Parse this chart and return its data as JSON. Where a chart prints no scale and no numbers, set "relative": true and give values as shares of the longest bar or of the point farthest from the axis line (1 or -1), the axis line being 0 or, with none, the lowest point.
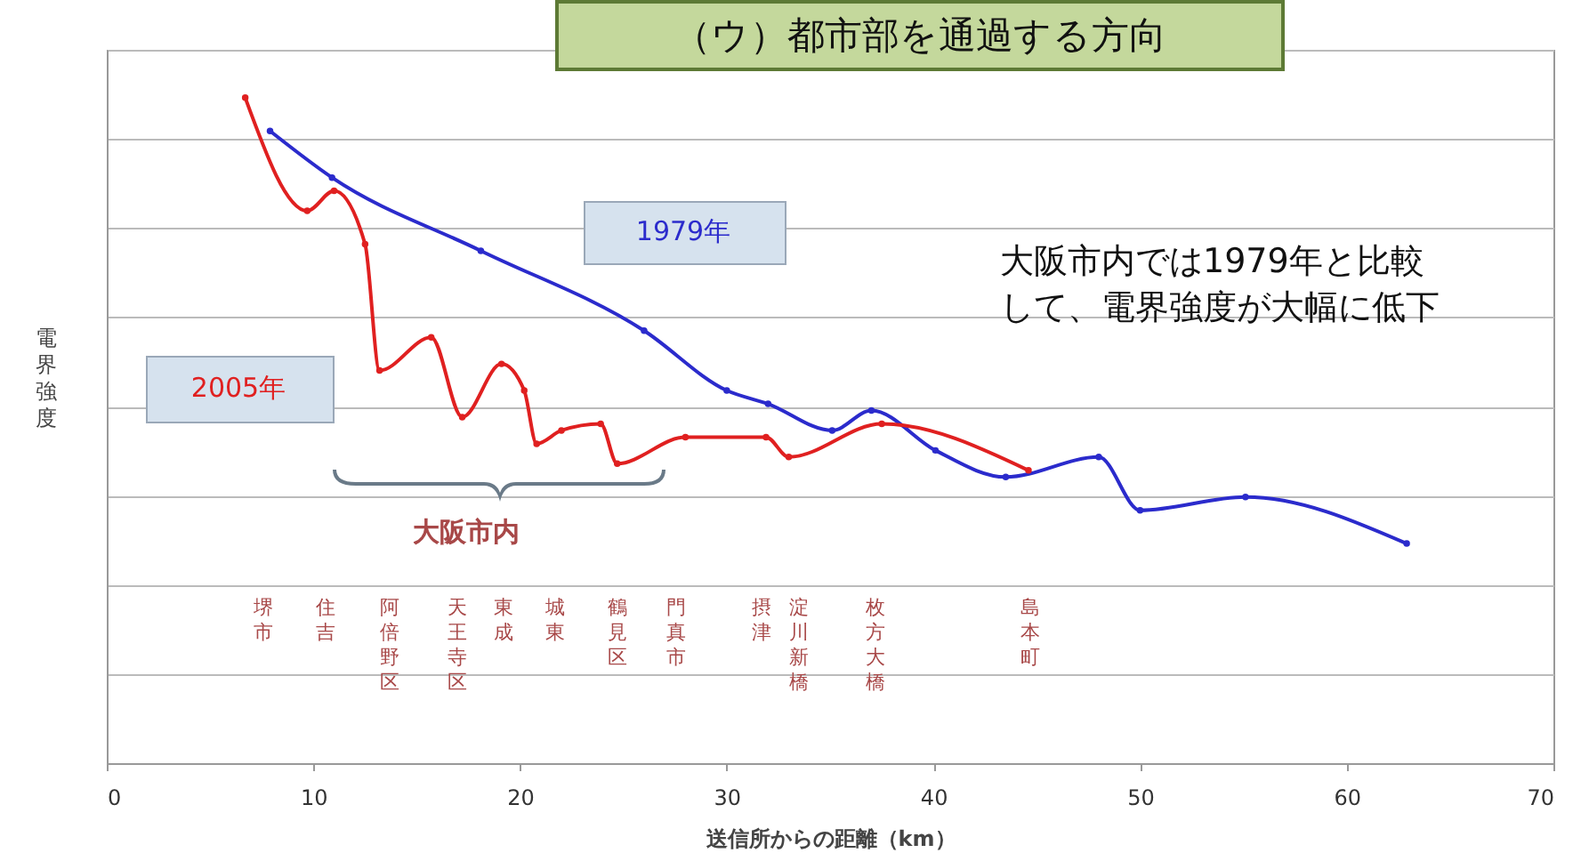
{
  "chart_data": {
    "type": "line",
    "title": "（ウ）都市部を通過する方向",
    "xlabel": "送信所からの距離（km）",
    "ylabel": "電界強度",
    "relative": true,
    "xlim": [
      0,
      70
    ],
    "xticks": [
      0,
      10,
      20,
      30,
      40,
      50,
      60,
      70
    ],
    "grid": "y",
    "legend": false,
    "marker": "circle",
    "line_style": "solid",
    "series": [
      {
        "name": "1979年",
        "color": "#2b2bcc",
        "x": [
          7.9,
          10.9,
          18.1,
          26.0,
          30.0,
          32.0,
          35.1,
          37.0,
          40.1,
          43.5,
          48.0,
          50.0,
          55.1,
          62.9
        ],
        "values": [
          0.95,
          0.88,
          0.77,
          0.65,
          0.56,
          0.54,
          0.5,
          0.53,
          0.47,
          0.43,
          0.46,
          0.38,
          0.4,
          0.33
        ]
      },
      {
        "name": "2005年",
        "color": "#e02020",
        "x": [
          6.7,
          9.7,
          11.0,
          12.5,
          13.2,
          15.7,
          17.2,
          19.1,
          20.2,
          20.8,
          22.0,
          23.9,
          24.7,
          28.0,
          31.9,
          33.0,
          37.5,
          44.6
        ],
        "values": [
          1.0,
          0.83,
          0.86,
          0.78,
          0.59,
          0.64,
          0.52,
          0.6,
          0.56,
          0.48,
          0.5,
          0.51,
          0.45,
          0.49,
          0.49,
          0.46,
          0.51,
          0.44
        ]
      }
    ],
    "annotations": [
      "大阪市内",
      "大阪市内では1979年と比較して、電界強度が大幅に低下",
      "堺市",
      "住吉",
      "阿倍野区",
      "天王寺区",
      "東成",
      "城東",
      "鶴見区",
      "門真市",
      "摂津",
      "淀川新橋",
      "枚方大橋",
      "島本町"
    ]
  }
}
